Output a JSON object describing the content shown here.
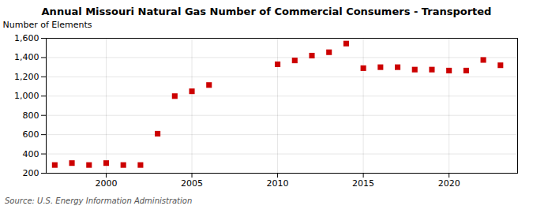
{
  "chart_data": {
    "type": "scatter",
    "title": "Annual Missouri Natural Gas Number of Commercial Consumers - Transported",
    "ylabel": "Number of Elements",
    "source": "Source: U.S. Energy Information Administration",
    "x": [
      1997,
      1998,
      1999,
      2000,
      2001,
      2002,
      2003,
      2004,
      2005,
      2006,
      2010,
      2011,
      2012,
      2013,
      2014,
      2015,
      2016,
      2017,
      2018,
      2019,
      2020,
      2021,
      2022,
      2023
    ],
    "values": [
      285,
      305,
      285,
      305,
      285,
      285,
      610,
      1000,
      1050,
      1115,
      1330,
      1370,
      1420,
      1455,
      1545,
      1290,
      1300,
      1300,
      1275,
      1275,
      1265,
      1265,
      1375,
      1320
    ],
    "color": "#cc0000",
    "marker": "square",
    "xlim": [
      1996.5,
      2024
    ],
    "xticks": [
      2000,
      2005,
      2010,
      2015,
      2020
    ],
    "ylim": [
      200,
      1600
    ],
    "yticks": [
      200,
      400,
      600,
      800,
      {
        "value": 1000,
        "label": "1,000"
      },
      {
        "value": 1200,
        "label": "1,200"
      },
      {
        "value": 1400,
        "label": "1,400"
      },
      {
        "value": 1600,
        "label": "1,600"
      }
    ],
    "grid": true
  }
}
